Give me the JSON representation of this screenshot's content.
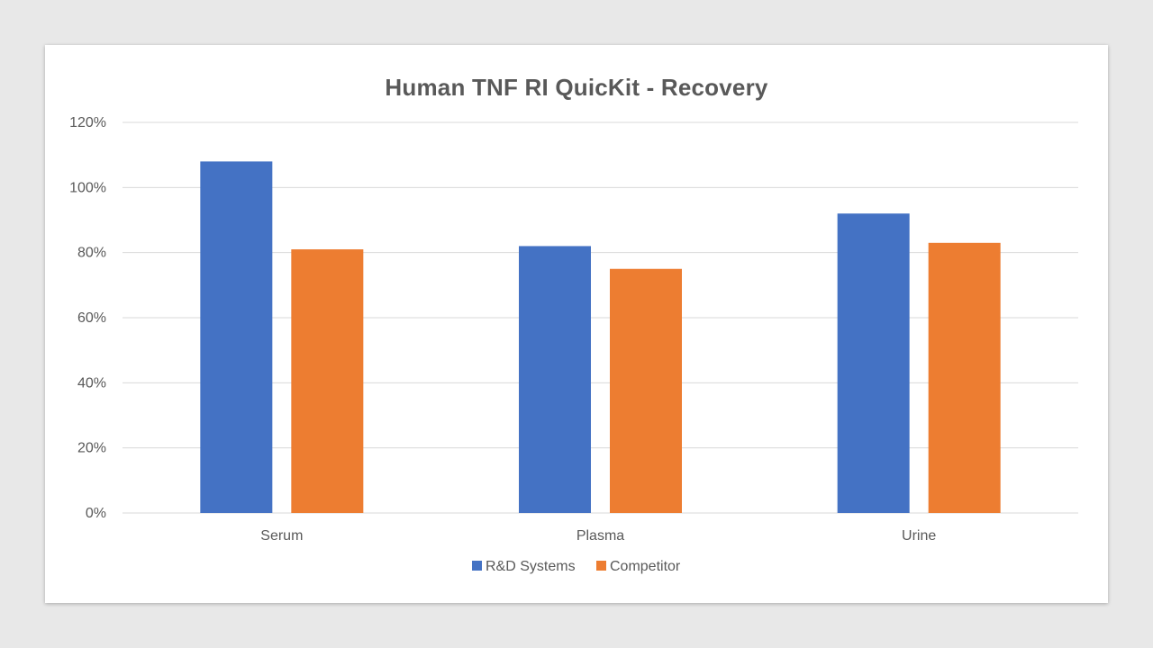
{
  "chart_data": {
    "type": "bar",
    "title": "Human TNF RI QuicKit - Recovery",
    "xlabel": "",
    "ylabel": "",
    "categories": [
      "Serum",
      "Plasma",
      "Urine"
    ],
    "series": [
      {
        "name": "R&D Systems",
        "color": "#4472c4",
        "values": [
          108,
          82,
          92
        ]
      },
      {
        "name": "Competitor",
        "color": "#ed7d31",
        "values": [
          81,
          75,
          83
        ]
      }
    ],
    "ylim": [
      0,
      120
    ],
    "yticks": [
      "0%",
      "20%",
      "40%",
      "60%",
      "80%",
      "100%",
      "120%"
    ],
    "grid": true,
    "legend_position": "bottom"
  }
}
